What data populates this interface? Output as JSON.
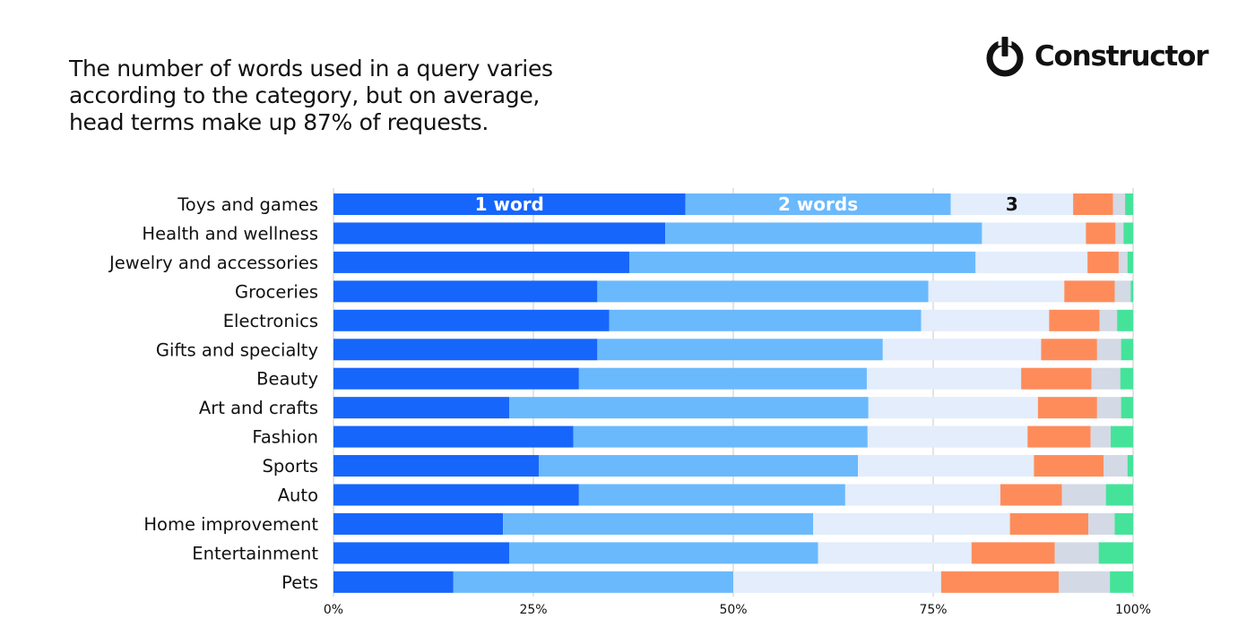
{
  "headline": {
    "lines": [
      "The number of words used in a query varies",
      "according to the category, but on average,",
      "head terms make up 87% of requests."
    ]
  },
  "logo": {
    "text": "Constructor",
    "icon": "power-icon"
  },
  "chart_data": {
    "type": "bar",
    "orientation": "horizontal",
    "stacked": true,
    "xlim": [
      0,
      100
    ],
    "ticks": [
      "0%",
      "25%",
      "50%",
      "75%",
      "100%"
    ],
    "grid": true,
    "categories": [
      "Toys and games",
      "Health and wellness",
      "Jewelry and accessories",
      "Groceries",
      "Electronics",
      "Gifts and specialty",
      "Beauty",
      "Art and crafts",
      "Fashion",
      "Sports",
      "Auto",
      "Home improvement",
      "Entertainment",
      "Pets"
    ],
    "series": [
      {
        "label": "1 word",
        "color": "#1766fb",
        "label_color": "#ffffff",
        "values": [
          44,
          41.5,
          37,
          33,
          34.5,
          33,
          30.7,
          22,
          30,
          25.7,
          30.7,
          21.2,
          22,
          15
        ]
      },
      {
        "label": "2 words",
        "color": "#6ab9fd",
        "label_color": "#ffffff",
        "values": [
          33.2,
          39.6,
          43.3,
          41.4,
          39,
          35.7,
          36,
          44.9,
          36.8,
          39.9,
          33.3,
          38.8,
          38.6,
          35
        ]
      },
      {
        "label": "3",
        "color": "#e3edfb",
        "label_color": "#111111",
        "values": [
          15.3,
          13,
          14,
          17,
          16,
          19.8,
          19.3,
          21.2,
          20,
          22,
          19.4,
          24.6,
          19.2,
          26
        ]
      },
      {
        "color": "#fe8c5b",
        "values": [
          5,
          3.7,
          3.9,
          6.3,
          6.3,
          7,
          8.8,
          7.4,
          7.9,
          8.7,
          7.7,
          9.8,
          10.4,
          14.7
        ]
      },
      {
        "color": "#d3d9e5",
        "values": [
          1.5,
          1,
          1.1,
          2,
          2.2,
          3,
          3.6,
          3,
          2.5,
          3,
          5.5,
          3.3,
          5.5,
          6.4
        ]
      },
      {
        "color": "#45e39a",
        "values": [
          1,
          1.2,
          0.7,
          0.3,
          2,
          1.5,
          1.6,
          1.5,
          2.8,
          0.7,
          3.4,
          2.3,
          4.3,
          2.9
        ]
      }
    ]
  }
}
